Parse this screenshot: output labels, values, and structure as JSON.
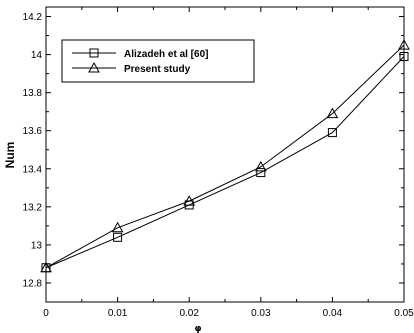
{
  "chart_data": {
    "type": "line",
    "x": [
      0,
      0.01,
      0.02,
      0.03,
      0.04,
      0.05
    ],
    "x_tick_labels": [
      "0",
      "0.01",
      "0.02",
      "0.03",
      "0.04",
      "0.05"
    ],
    "y_tick_labels": [
      "12.8",
      "13",
      "13.2",
      "13.4",
      "13.6",
      "13.8",
      "14",
      "14.2"
    ],
    "xlim": [
      0,
      0.05
    ],
    "ylim": [
      12.7,
      14.25
    ],
    "ylabel": "Num",
    "xlabel": "φ",
    "legend_position": "top-left",
    "grid": false,
    "series": [
      {
        "name": "Alizadeh et al [60]",
        "marker": "square",
        "values": [
          12.88,
          13.04,
          13.21,
          13.38,
          13.59,
          13.99
        ]
      },
      {
        "name": "Present study",
        "marker": "triangle",
        "values": [
          12.88,
          13.09,
          13.23,
          13.41,
          13.69,
          14.05
        ]
      }
    ]
  }
}
